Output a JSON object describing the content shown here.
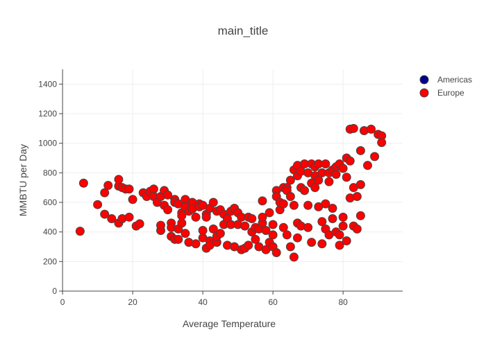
{
  "chart_data": {
    "type": "scatter",
    "title": "main_title",
    "xlabel": "Average Temperature",
    "ylabel": "MMBTU per Day",
    "xlim": [
      -2,
      97
    ],
    "ylim": [
      0,
      1500
    ],
    "x_ticks": [
      0,
      20,
      40,
      60,
      80
    ],
    "y_ticks": [
      0,
      200,
      400,
      600,
      800,
      1000,
      1200,
      1400
    ],
    "grid": true,
    "legend_position": "top-right",
    "series": [
      {
        "name": "Americas",
        "color": "#00008b",
        "points": []
      },
      {
        "name": "Europe",
        "color": "#ff0000",
        "points": [
          [
            5,
            405
          ],
          [
            6,
            730
          ],
          [
            10,
            585
          ],
          [
            12,
            665
          ],
          [
            12,
            520
          ],
          [
            13,
            715
          ],
          [
            14,
            490
          ],
          [
            16,
            460
          ],
          [
            16,
            710
          ],
          [
            16,
            755
          ],
          [
            17,
            490
          ],
          [
            17,
            700
          ],
          [
            18,
            690
          ],
          [
            19,
            500
          ],
          [
            19,
            690
          ],
          [
            20,
            620
          ],
          [
            21,
            440
          ],
          [
            22,
            455
          ],
          [
            23,
            665
          ],
          [
            24,
            640
          ],
          [
            25,
            675
          ],
          [
            26,
            690
          ],
          [
            26,
            640
          ],
          [
            27,
            600
          ],
          [
            28,
            410
          ],
          [
            28,
            445
          ],
          [
            28,
            640
          ],
          [
            29,
            580
          ],
          [
            29,
            680
          ],
          [
            30,
            550
          ],
          [
            30,
            650
          ],
          [
            31,
            370
          ],
          [
            31,
            460
          ],
          [
            31,
            430
          ],
          [
            32,
            350
          ],
          [
            32,
            620
          ],
          [
            32,
            600
          ],
          [
            33,
            420
          ],
          [
            33,
            590
          ],
          [
            33,
            350
          ],
          [
            34,
            460
          ],
          [
            34,
            530
          ],
          [
            34,
            510
          ],
          [
            35,
            620
          ],
          [
            35,
            570
          ],
          [
            35,
            390
          ],
          [
            36,
            330
          ],
          [
            36,
            540
          ],
          [
            37,
            600
          ],
          [
            37,
            555
          ],
          [
            38,
            320
          ],
          [
            38,
            500
          ],
          [
            39,
            590
          ],
          [
            39,
            570
          ],
          [
            40,
            410
          ],
          [
            40,
            360
          ],
          [
            40,
            580
          ],
          [
            41,
            290
          ],
          [
            41,
            520
          ],
          [
            41,
            500
          ],
          [
            42,
            340
          ],
          [
            42,
            310
          ],
          [
            42,
            560
          ],
          [
            43,
            420
          ],
          [
            43,
            600
          ],
          [
            44,
            330
          ],
          [
            44,
            370
          ],
          [
            44,
            540
          ],
          [
            45,
            550
          ],
          [
            45,
            390
          ],
          [
            46,
            520
          ],
          [
            46,
            450
          ],
          [
            47,
            310
          ],
          [
            47,
            490
          ],
          [
            48,
            450
          ],
          [
            48,
            540
          ],
          [
            49,
            560
          ],
          [
            49,
            300
          ],
          [
            50,
            530
          ],
          [
            50,
            450
          ],
          [
            51,
            280
          ],
          [
            51,
            500
          ],
          [
            52,
            290
          ],
          [
            52,
            440
          ],
          [
            53,
            310
          ],
          [
            53,
            500
          ],
          [
            54,
            400
          ],
          [
            54,
            490
          ],
          [
            55,
            350
          ],
          [
            55,
            430
          ],
          [
            56,
            300
          ],
          [
            56,
            420
          ],
          [
            57,
            460
          ],
          [
            57,
            500
          ],
          [
            57,
            610
          ],
          [
            58,
            280
          ],
          [
            58,
            410
          ],
          [
            59,
            330
          ],
          [
            59,
            530
          ],
          [
            60,
            300
          ],
          [
            60,
            380
          ],
          [
            60,
            450
          ],
          [
            61,
            680
          ],
          [
            61,
            640
          ],
          [
            61,
            260
          ],
          [
            62,
            550
          ],
          [
            62,
            600
          ],
          [
            63,
            430
          ],
          [
            63,
            700
          ],
          [
            63,
            590
          ],
          [
            64,
            380
          ],
          [
            64,
            700
          ],
          [
            64,
            680
          ],
          [
            65,
            300
          ],
          [
            65,
            640
          ],
          [
            65,
            750
          ],
          [
            66,
            820
          ],
          [
            66,
            580
          ],
          [
            66,
            230
          ],
          [
            67,
            850
          ],
          [
            67,
            780
          ],
          [
            67,
            460
          ],
          [
            67,
            360
          ],
          [
            68,
            810
          ],
          [
            68,
            700
          ],
          [
            68,
            440
          ],
          [
            69,
            860
          ],
          [
            69,
            680
          ],
          [
            70,
            800
          ],
          [
            70,
            430
          ],
          [
            70,
            580
          ],
          [
            71,
            730
          ],
          [
            71,
            860
          ],
          [
            71,
            330
          ],
          [
            72,
            840
          ],
          [
            72,
            700
          ],
          [
            72,
            780
          ],
          [
            73,
            570
          ],
          [
            73,
            860
          ],
          [
            73,
            750
          ],
          [
            74,
            800
          ],
          [
            74,
            470
          ],
          [
            74,
            320
          ],
          [
            75,
            860
          ],
          [
            75,
            420
          ],
          [
            75,
            590
          ],
          [
            76,
            800
          ],
          [
            76,
            740
          ],
          [
            76,
            380
          ],
          [
            77,
            820
          ],
          [
            77,
            560
          ],
          [
            77,
            490
          ],
          [
            78,
            790
          ],
          [
            78,
            840
          ],
          [
            78,
            400
          ],
          [
            79,
            860
          ],
          [
            79,
            380
          ],
          [
            79,
            310
          ],
          [
            80,
            830
          ],
          [
            80,
            500
          ],
          [
            80,
            440
          ],
          [
            81,
            770
          ],
          [
            81,
            900
          ],
          [
            81,
            340
          ],
          [
            82,
            1095
          ],
          [
            82,
            880
          ],
          [
            82,
            630
          ],
          [
            83,
            1100
          ],
          [
            83,
            700
          ],
          [
            83,
            440
          ],
          [
            84,
            640
          ],
          [
            84,
            420
          ],
          [
            85,
            950
          ],
          [
            85,
            720
          ],
          [
            85,
            510
          ],
          [
            86,
            1085
          ],
          [
            87,
            850
          ],
          [
            88,
            1095
          ],
          [
            89,
            910
          ],
          [
            90,
            1060
          ],
          [
            91,
            1050
          ],
          [
            91,
            1005
          ]
        ]
      }
    ]
  }
}
